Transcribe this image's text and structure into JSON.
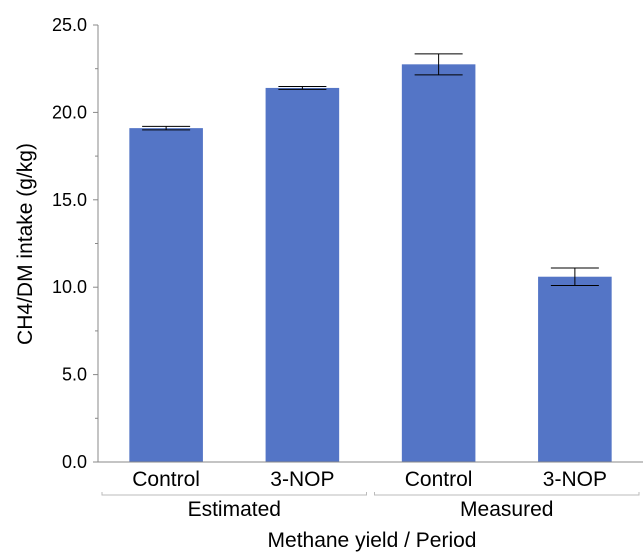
{
  "chart_data": {
    "type": "bar",
    "title": "",
    "xlabel": "Methane yield / Period",
    "ylabel": "CH4/DM intake (g/kg)",
    "ylim": [
      0,
      25
    ],
    "yticks": [
      "0.0",
      "5.0",
      "10.0",
      "15.0",
      "20.0",
      "25.0"
    ],
    "grid": false,
    "legend": "none",
    "bar_color": "#5475C6",
    "groups": [
      {
        "label": "Estimated",
        "categories": [
          "Control",
          "3-NOP"
        ]
      },
      {
        "label": "Measured",
        "categories": [
          "Control",
          "3-NOP"
        ]
      }
    ],
    "bars": [
      {
        "group": "Estimated",
        "category": "Control",
        "value": 19.1,
        "err": 0.1
      },
      {
        "group": "Estimated",
        "category": "3-NOP",
        "value": 21.4,
        "err": 0.08
      },
      {
        "group": "Measured",
        "category": "Control",
        "value": 22.75,
        "err": 0.6
      },
      {
        "group": "Measured",
        "category": "3-NOP",
        "value": 10.6,
        "err": 0.5
      }
    ]
  }
}
